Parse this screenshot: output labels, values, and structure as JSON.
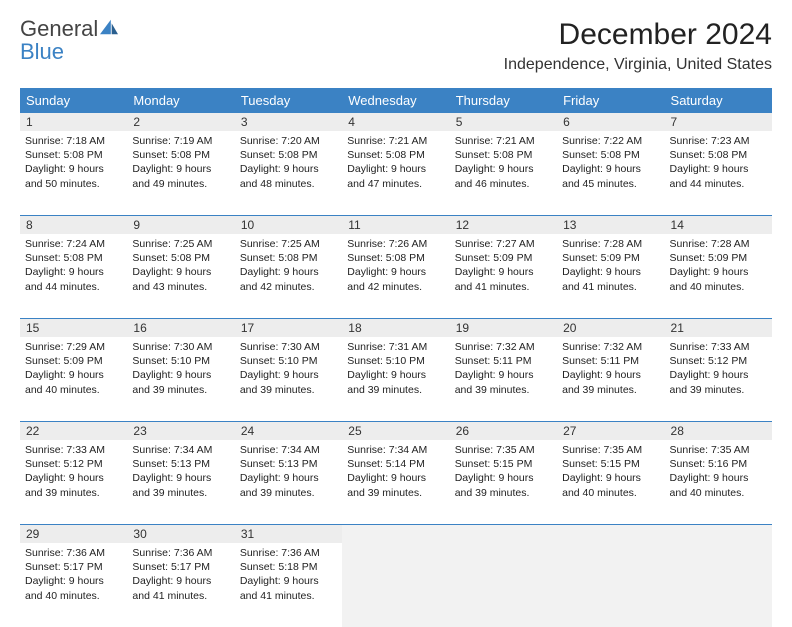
{
  "logo": {
    "text1": "General",
    "text2": "Blue"
  },
  "title": "December 2024",
  "location": "Independence, Virginia, United States",
  "header_bg": "#3b82c4",
  "daynum_bg": "#ededed",
  "day_names": [
    "Sunday",
    "Monday",
    "Tuesday",
    "Wednesday",
    "Thursday",
    "Friday",
    "Saturday"
  ],
  "weeks": [
    {
      "nums": [
        "1",
        "2",
        "3",
        "4",
        "5",
        "6",
        "7"
      ],
      "cells": [
        {
          "sunrise": "Sunrise: 7:18 AM",
          "sunset": "Sunset: 5:08 PM",
          "daylight": "Daylight: 9 hours and 50 minutes."
        },
        {
          "sunrise": "Sunrise: 7:19 AM",
          "sunset": "Sunset: 5:08 PM",
          "daylight": "Daylight: 9 hours and 49 minutes."
        },
        {
          "sunrise": "Sunrise: 7:20 AM",
          "sunset": "Sunset: 5:08 PM",
          "daylight": "Daylight: 9 hours and 48 minutes."
        },
        {
          "sunrise": "Sunrise: 7:21 AM",
          "sunset": "Sunset: 5:08 PM",
          "daylight": "Daylight: 9 hours and 47 minutes."
        },
        {
          "sunrise": "Sunrise: 7:21 AM",
          "sunset": "Sunset: 5:08 PM",
          "daylight": "Daylight: 9 hours and 46 minutes."
        },
        {
          "sunrise": "Sunrise: 7:22 AM",
          "sunset": "Sunset: 5:08 PM",
          "daylight": "Daylight: 9 hours and 45 minutes."
        },
        {
          "sunrise": "Sunrise: 7:23 AM",
          "sunset": "Sunset: 5:08 PM",
          "daylight": "Daylight: 9 hours and 44 minutes."
        }
      ]
    },
    {
      "nums": [
        "8",
        "9",
        "10",
        "11",
        "12",
        "13",
        "14"
      ],
      "cells": [
        {
          "sunrise": "Sunrise: 7:24 AM",
          "sunset": "Sunset: 5:08 PM",
          "daylight": "Daylight: 9 hours and 44 minutes."
        },
        {
          "sunrise": "Sunrise: 7:25 AM",
          "sunset": "Sunset: 5:08 PM",
          "daylight": "Daylight: 9 hours and 43 minutes."
        },
        {
          "sunrise": "Sunrise: 7:25 AM",
          "sunset": "Sunset: 5:08 PM",
          "daylight": "Daylight: 9 hours and 42 minutes."
        },
        {
          "sunrise": "Sunrise: 7:26 AM",
          "sunset": "Sunset: 5:08 PM",
          "daylight": "Daylight: 9 hours and 42 minutes."
        },
        {
          "sunrise": "Sunrise: 7:27 AM",
          "sunset": "Sunset: 5:09 PM",
          "daylight": "Daylight: 9 hours and 41 minutes."
        },
        {
          "sunrise": "Sunrise: 7:28 AM",
          "sunset": "Sunset: 5:09 PM",
          "daylight": "Daylight: 9 hours and 41 minutes."
        },
        {
          "sunrise": "Sunrise: 7:28 AM",
          "sunset": "Sunset: 5:09 PM",
          "daylight": "Daylight: 9 hours and 40 minutes."
        }
      ]
    },
    {
      "nums": [
        "15",
        "16",
        "17",
        "18",
        "19",
        "20",
        "21"
      ],
      "cells": [
        {
          "sunrise": "Sunrise: 7:29 AM",
          "sunset": "Sunset: 5:09 PM",
          "daylight": "Daylight: 9 hours and 40 minutes."
        },
        {
          "sunrise": "Sunrise: 7:30 AM",
          "sunset": "Sunset: 5:10 PM",
          "daylight": "Daylight: 9 hours and 39 minutes."
        },
        {
          "sunrise": "Sunrise: 7:30 AM",
          "sunset": "Sunset: 5:10 PM",
          "daylight": "Daylight: 9 hours and 39 minutes."
        },
        {
          "sunrise": "Sunrise: 7:31 AM",
          "sunset": "Sunset: 5:10 PM",
          "daylight": "Daylight: 9 hours and 39 minutes."
        },
        {
          "sunrise": "Sunrise: 7:32 AM",
          "sunset": "Sunset: 5:11 PM",
          "daylight": "Daylight: 9 hours and 39 minutes."
        },
        {
          "sunrise": "Sunrise: 7:32 AM",
          "sunset": "Sunset: 5:11 PM",
          "daylight": "Daylight: 9 hours and 39 minutes."
        },
        {
          "sunrise": "Sunrise: 7:33 AM",
          "sunset": "Sunset: 5:12 PM",
          "daylight": "Daylight: 9 hours and 39 minutes."
        }
      ]
    },
    {
      "nums": [
        "22",
        "23",
        "24",
        "25",
        "26",
        "27",
        "28"
      ],
      "cells": [
        {
          "sunrise": "Sunrise: 7:33 AM",
          "sunset": "Sunset: 5:12 PM",
          "daylight": "Daylight: 9 hours and 39 minutes."
        },
        {
          "sunrise": "Sunrise: 7:34 AM",
          "sunset": "Sunset: 5:13 PM",
          "daylight": "Daylight: 9 hours and 39 minutes."
        },
        {
          "sunrise": "Sunrise: 7:34 AM",
          "sunset": "Sunset: 5:13 PM",
          "daylight": "Daylight: 9 hours and 39 minutes."
        },
        {
          "sunrise": "Sunrise: 7:34 AM",
          "sunset": "Sunset: 5:14 PM",
          "daylight": "Daylight: 9 hours and 39 minutes."
        },
        {
          "sunrise": "Sunrise: 7:35 AM",
          "sunset": "Sunset: 5:15 PM",
          "daylight": "Daylight: 9 hours and 39 minutes."
        },
        {
          "sunrise": "Sunrise: 7:35 AM",
          "sunset": "Sunset: 5:15 PM",
          "daylight": "Daylight: 9 hours and 40 minutes."
        },
        {
          "sunrise": "Sunrise: 7:35 AM",
          "sunset": "Sunset: 5:16 PM",
          "daylight": "Daylight: 9 hours and 40 minutes."
        }
      ]
    },
    {
      "nums": [
        "29",
        "30",
        "31",
        "",
        "",
        "",
        ""
      ],
      "cells": [
        {
          "sunrise": "Sunrise: 7:36 AM",
          "sunset": "Sunset: 5:17 PM",
          "daylight": "Daylight: 9 hours and 40 minutes."
        },
        {
          "sunrise": "Sunrise: 7:36 AM",
          "sunset": "Sunset: 5:17 PM",
          "daylight": "Daylight: 9 hours and 41 minutes."
        },
        {
          "sunrise": "Sunrise: 7:36 AM",
          "sunset": "Sunset: 5:18 PM",
          "daylight": "Daylight: 9 hours and 41 minutes."
        },
        {
          "empty": true
        },
        {
          "empty": true
        },
        {
          "empty": true
        },
        {
          "empty": true
        }
      ]
    }
  ]
}
